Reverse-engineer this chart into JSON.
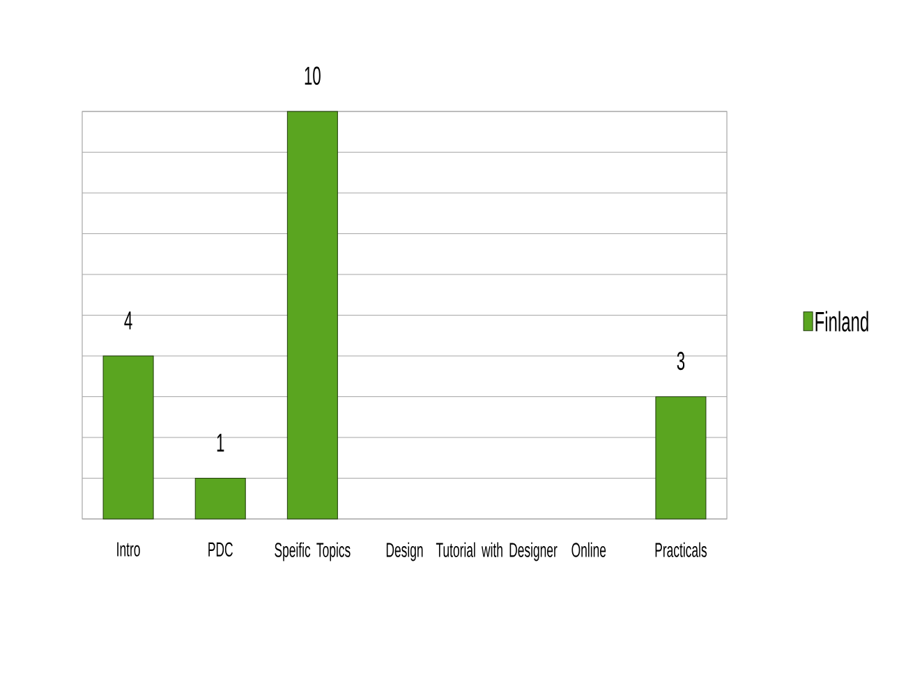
{
  "chart_data": {
    "type": "bar",
    "categories": [
      "Intro",
      "PDC",
      "Speific Topics",
      "Design",
      "Tutorial with Designer",
      "Online",
      "Practicals"
    ],
    "series": [
      {
        "name": "Finland",
        "color": "#5aa520",
        "values": [
          4,
          1,
          10,
          null,
          null,
          null,
          3
        ]
      }
    ],
    "ylim": [
      0,
      10
    ],
    "yticks": [
      {
        "value": 0,
        "label": null
      },
      {
        "value": 1,
        "label": null
      },
      {
        "value": 2,
        "label": null
      },
      {
        "value": 3,
        "label": null
      },
      {
        "value": 4,
        "label": null
      },
      {
        "value": 5,
        "label": null
      },
      {
        "value": 6,
        "label": null
      },
      {
        "value": 7,
        "label": null
      },
      {
        "value": 8,
        "label": null
      },
      {
        "value": 9,
        "label": null
      },
      {
        "value": 10,
        "label": null
      }
    ],
    "tick_labels": "x",
    "grid": "y",
    "legend": "right",
    "data_labels": true
  }
}
